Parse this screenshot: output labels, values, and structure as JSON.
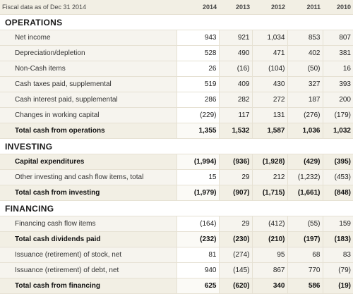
{
  "header": {
    "fiscal_label": "Fiscal data as of Dec 31 2014",
    "years": [
      "2014",
      "2013",
      "2012",
      "2011",
      "2010"
    ]
  },
  "sections": [
    {
      "title": "OPERATIONS",
      "rows": [
        {
          "label": "Net income",
          "values": [
            "943",
            "921",
            "1,034",
            "853",
            "807"
          ],
          "total": false
        },
        {
          "label": "Depreciation/depletion",
          "values": [
            "528",
            "490",
            "471",
            "402",
            "381"
          ],
          "total": false
        },
        {
          "label": "Non-Cash items",
          "values": [
            "26",
            "(16)",
            "(104)",
            "(50)",
            "16"
          ],
          "total": false
        },
        {
          "label": "Cash taxes paid, supplemental",
          "values": [
            "519",
            "409",
            "430",
            "327",
            "393"
          ],
          "total": false
        },
        {
          "label": "Cash interest paid, supplemental",
          "values": [
            "286",
            "282",
            "272",
            "187",
            "200"
          ],
          "total": false
        },
        {
          "label": "Changes in working capital",
          "values": [
            "(229)",
            "117",
            "131",
            "(276)",
            "(179)"
          ],
          "total": false
        },
        {
          "label": "Total cash from operations",
          "values": [
            "1,355",
            "1,532",
            "1,587",
            "1,036",
            "1,032"
          ],
          "total": true
        }
      ]
    },
    {
      "title": "INVESTING",
      "rows": [
        {
          "label": "Capital expenditures",
          "values": [
            "(1,994)",
            "(936)",
            "(1,928)",
            "(429)",
            "(395)"
          ],
          "total": true
        },
        {
          "label": "Other investing and cash flow items, total",
          "values": [
            "15",
            "29",
            "212",
            "(1,232)",
            "(453)"
          ],
          "total": false
        },
        {
          "label": "Total cash from investing",
          "values": [
            "(1,979)",
            "(907)",
            "(1,715)",
            "(1,661)",
            "(848)"
          ],
          "total": true
        }
      ]
    },
    {
      "title": "FINANCING",
      "rows": [
        {
          "label": "Financing cash flow items",
          "values": [
            "(164)",
            "29",
            "(412)",
            "(55)",
            "159"
          ],
          "total": false
        },
        {
          "label": "Total cash dividends paid",
          "values": [
            "(232)",
            "(230)",
            "(210)",
            "(197)",
            "(183)"
          ],
          "total": true
        },
        {
          "label": "Issuance (retirement) of stock, net",
          "values": [
            "81",
            "(274)",
            "95",
            "68",
            "83"
          ],
          "total": false
        },
        {
          "label": "Issuance (retirement) of debt, net",
          "values": [
            "940",
            "(145)",
            "867",
            "770",
            "(79)"
          ],
          "total": false
        },
        {
          "label": "Total cash from financing",
          "values": [
            "625",
            "(620)",
            "340",
            "586",
            "(19)"
          ],
          "total": true
        }
      ]
    }
  ]
}
